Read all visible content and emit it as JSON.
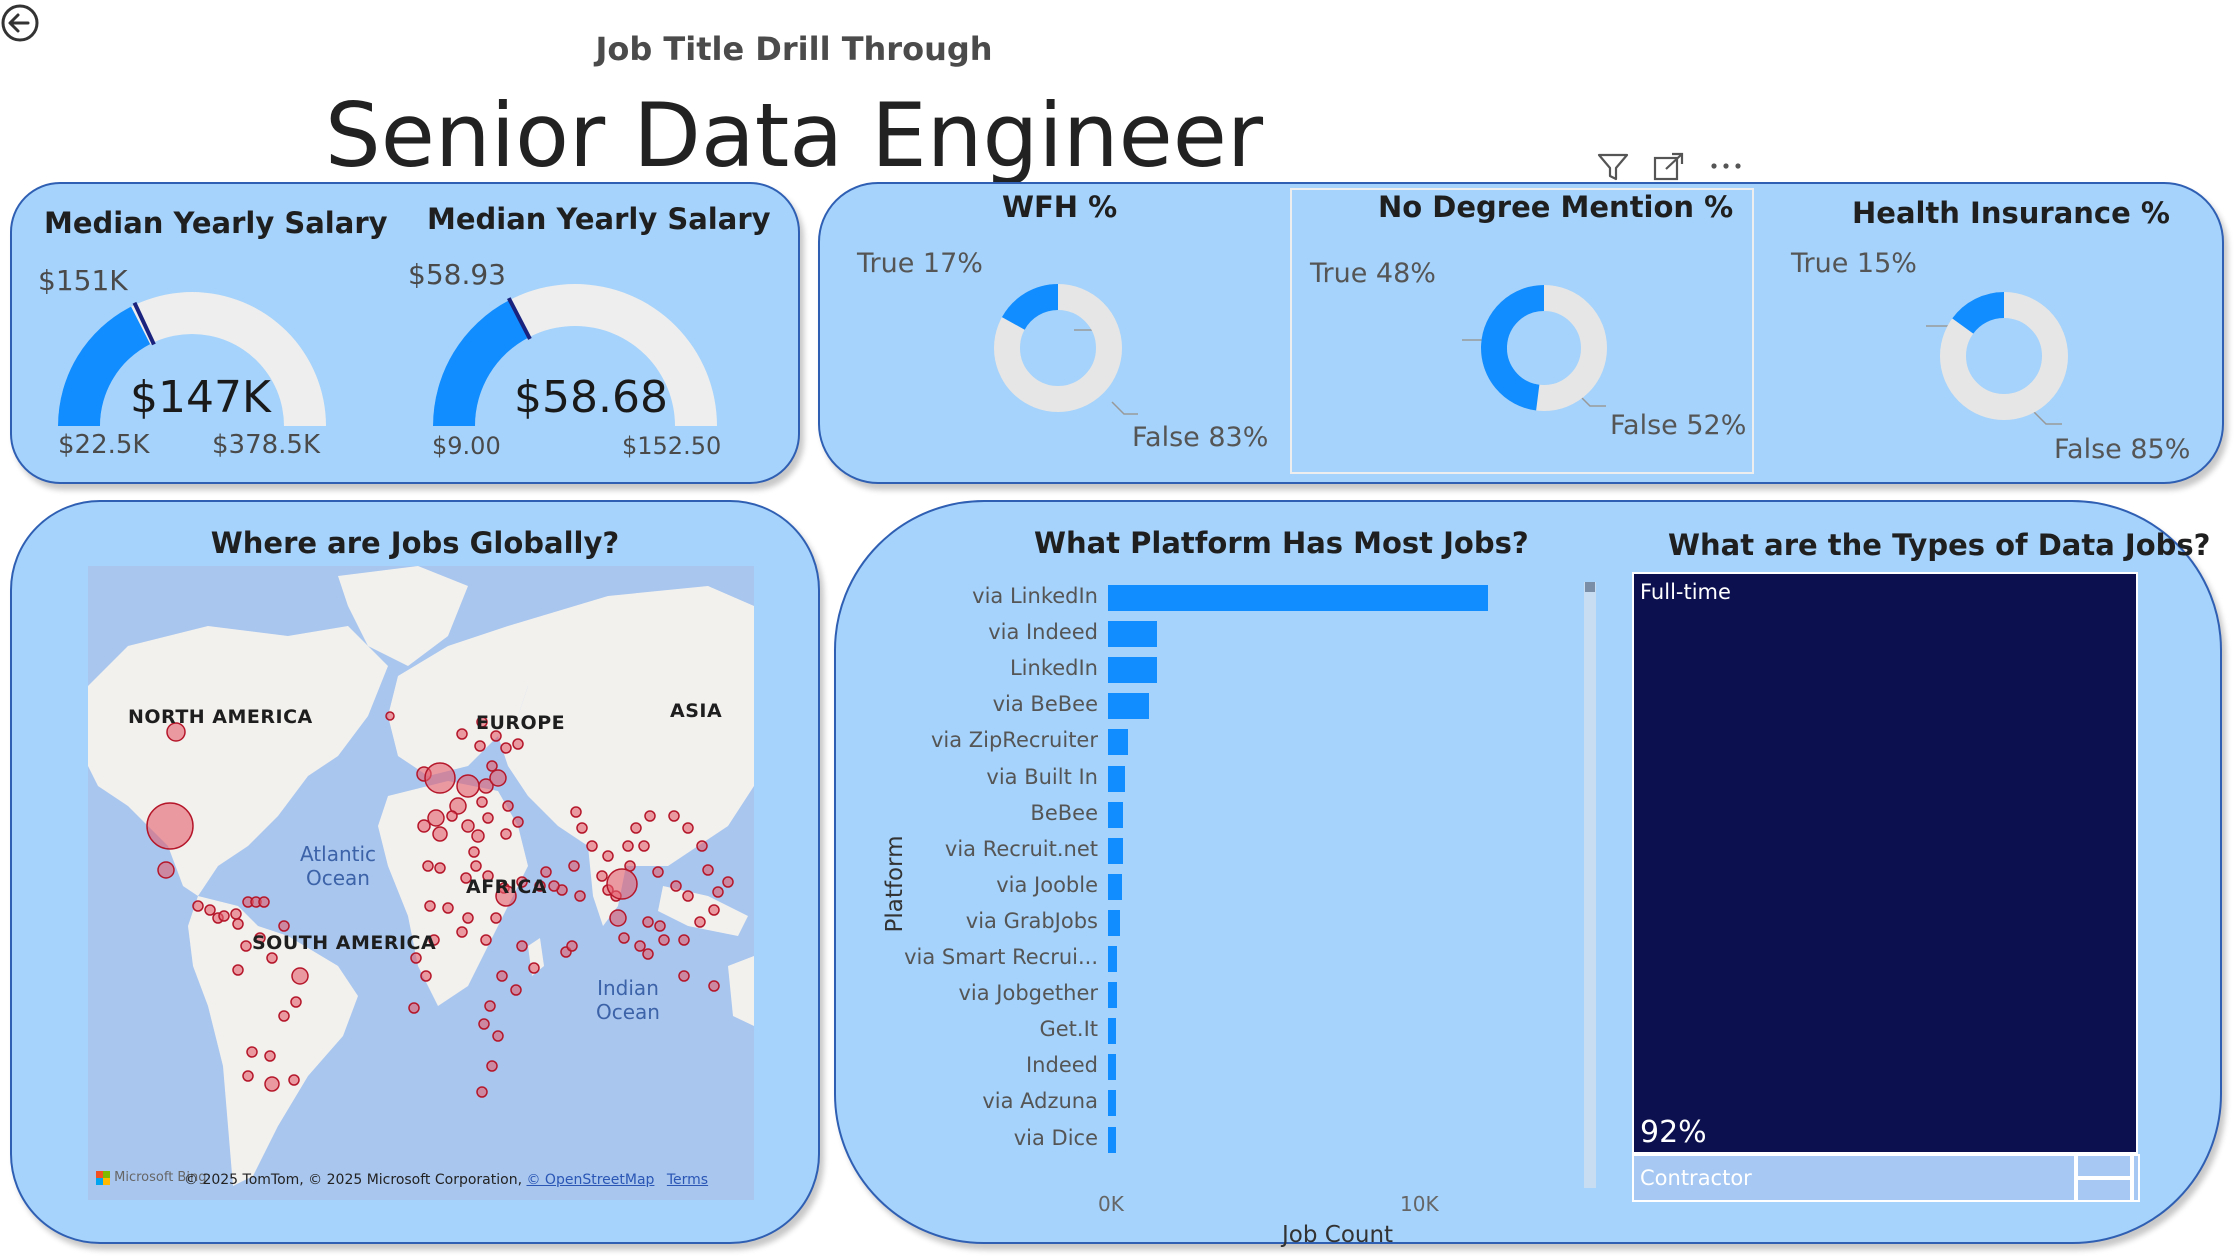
{
  "page": {
    "subtitle": "Job Title Drill Through",
    "title": "Senior Data Engineer"
  },
  "gauges": [
    {
      "title": "Median Yearly Salary",
      "target_label": "$151K",
      "value_label": "$147K",
      "min_label": "$22.5K",
      "max_label": "$378.5K",
      "min": 22.5,
      "max": 378.5,
      "value": 147,
      "target": 151
    },
    {
      "title": "Median Yearly Salary",
      "target_label": "$58.93",
      "value_label": "$58.68",
      "min_label": "$9.00",
      "max_label": "$152.50",
      "min": 9.0,
      "max": 152.5,
      "value": 58.68,
      "target": 58.93
    }
  ],
  "donuts": [
    {
      "title": "WFH %",
      "true_label": "True 17%",
      "false_label": "False 83%",
      "true_pct": 17
    },
    {
      "title": "No Degree Mention %",
      "true_label": "True 48%",
      "false_label": "False 52%",
      "true_pct": 48
    },
    {
      "title": "Health Insurance %",
      "true_label": "True 15%",
      "false_label": "False 85%",
      "true_pct": 15
    }
  ],
  "map": {
    "title": "Where are Jobs Globally?",
    "continents": [
      "NORTH AMERICA",
      "EUROPE",
      "ASIA",
      "AFRICA",
      "SOUTH AMERICA"
    ],
    "oceans": [
      "Atlantic Ocean",
      "Indian Ocean"
    ],
    "attribution": "© 2025 TomTom, © 2025 Microsoft Corporation,",
    "osm_link": "© OpenStreetMap",
    "terms_link": "Terms",
    "brand": "Microsoft Bing"
  },
  "toolbar": {
    "filter_icon": "filter-icon",
    "focus_icon": "focus-mode-icon",
    "more_icon": "more-options-icon"
  },
  "chart_data": [
    {
      "type": "bar",
      "title": "What Platform Has Most Jobs?",
      "ylabel": "Platform",
      "xlabel": "Job Count",
      "orientation": "horizontal",
      "categories": [
        "via LinkedIn",
        "via Indeed",
        "LinkedIn",
        "via BeBee",
        "via ZipRecruiter",
        "via Built In",
        "BeBee",
        "via Recruit.net",
        "via Jooble",
        "via GrabJobs",
        "via Smart Recrui...",
        "via Jobgether",
        "Get.It",
        "Indeed",
        "via Adzuna",
        "via Dice"
      ],
      "values": [
        12500,
        1600,
        1600,
        1350,
        650,
        550,
        500,
        500,
        450,
        400,
        300,
        300,
        250,
        250,
        250,
        250
      ],
      "xticks": [
        "0K",
        "10K"
      ],
      "xlim": [
        0,
        15400
      ]
    },
    {
      "type": "treemap",
      "title": "What are the Types of Data Jobs?",
      "categories": [
        "Full-time",
        "Contractor"
      ],
      "value_labels": [
        "92%",
        ""
      ],
      "colors": [
        "#0c104f",
        "#a6c8f2"
      ]
    }
  ],
  "colors": {
    "accent": "#118dff",
    "card_bg": "#a6d3fb",
    "card_border": "#2f5fb3",
    "track": "#e6e6e6",
    "target_line": "#1a237e"
  }
}
